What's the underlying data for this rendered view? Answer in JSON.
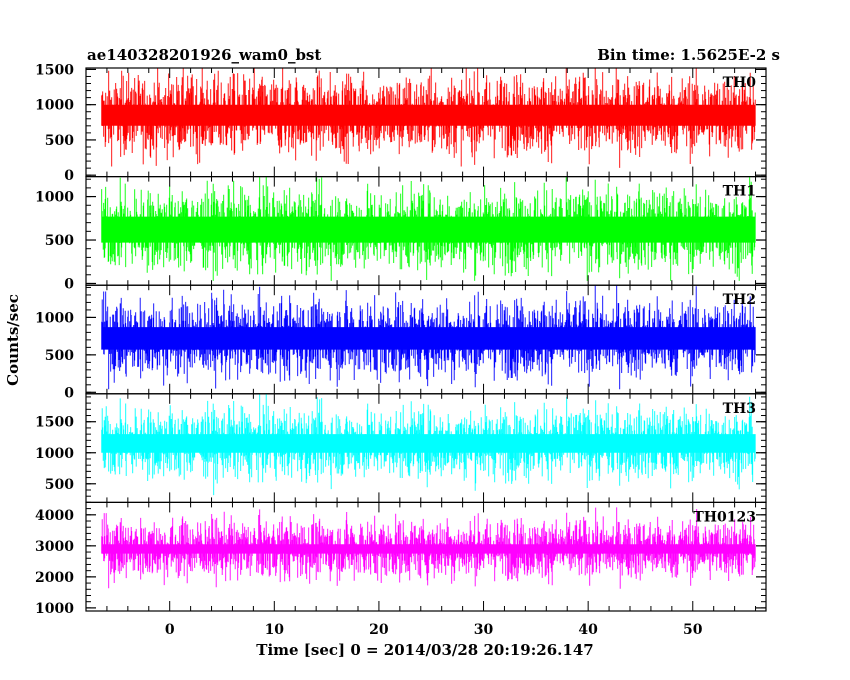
{
  "header": {
    "left_title": "ae140328201926_wam0_bst",
    "right_title": "Bin time: 1.5625E-2 s"
  },
  "chart_data": {
    "type": "line",
    "title": "ae140328201926_wam0_bst",
    "subtitle": "Bin time: 1.5625E-2 s",
    "xlabel": "Time [sec] 0 = 2014/03/28 20:19:26.147",
    "ylabel": "Counts/sec",
    "xlim": [
      -8,
      57
    ],
    "xticks": [
      0,
      10,
      20,
      30,
      40,
      50
    ],
    "data_xrange": [
      -6.5,
      56
    ],
    "bin_time_s": 0.015625,
    "grid": false,
    "legend": "none",
    "panels": [
      {
        "name": "TH0",
        "color": "#ff0000",
        "ylim": [
          -20,
          1520
        ],
        "yticks": [
          0,
          500,
          1000,
          1500
        ],
        "baseline": 850,
        "min": 40,
        "max": 1520,
        "noise": 280
      },
      {
        "name": "TH1",
        "color": "#00ff00",
        "ylim": [
          -20,
          1230
        ],
        "yticks": [
          0,
          500,
          1000
        ],
        "baseline": 620,
        "min": 30,
        "max": 1230,
        "noise": 230
      },
      {
        "name": "TH2",
        "color": "#0000ff",
        "ylim": [
          -20,
          1430
        ],
        "yticks": [
          0,
          500,
          1000
        ],
        "baseline": 720,
        "min": 40,
        "max": 1430,
        "noise": 260
      },
      {
        "name": "TH3",
        "color": "#00ffff",
        "ylim": [
          200,
          1950
        ],
        "yticks": [
          500,
          1000,
          1500
        ],
        "baseline": 1150,
        "min": 260,
        "max": 1950,
        "noise": 280
      },
      {
        "name": "TH0123",
        "color": "#ff00ff",
        "ylim": [
          900,
          4400
        ],
        "yticks": [
          1000,
          2000,
          3000,
          4000
        ],
        "baseline": 2900,
        "min": 950,
        "max": 4400,
        "noise": 480
      }
    ]
  }
}
